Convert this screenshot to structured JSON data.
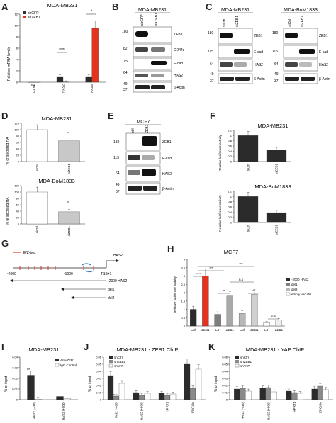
{
  "panels": {
    "A": {
      "label": "A",
      "title": "MDA-MB231",
      "ylabel": "Relative mRNA levels",
      "legend": [
        "shGFP",
        "shZEB1"
      ],
      "categories": [
        "HAS1",
        "HAS2",
        "HAS3"
      ],
      "nd": "n.d",
      "sig": [
        "****",
        "*"
      ]
    },
    "B": {
      "label": "B",
      "title": "MDA-MB231",
      "lanes": [
        "shGFP",
        "shZEB1"
      ],
      "markers": [
        "180",
        "82",
        "115",
        "64",
        "49",
        "37"
      ],
      "bands": [
        "ZEB1",
        "CD44s",
        "E-cad",
        "HAS2",
        "β-Actin"
      ]
    },
    "C": {
      "label": "C",
      "title_left": "MDA-MB231",
      "title_right": "MDA-BoM1833",
      "lanes": [
        "siCtrl",
        "siZEB1"
      ],
      "markers": [
        "180",
        "115",
        "64",
        "49",
        "37"
      ],
      "bands": [
        "ZEB1",
        "E-cad",
        "HAS2",
        "β-Actin"
      ]
    },
    "D": {
      "label": "D",
      "title_top": "MDA-MB231",
      "title_bottom": "MDA-BoM1833",
      "ylabel": "% of secreted HA",
      "categories": [
        "siCtrl",
        "siZEB1"
      ],
      "sig": [
        "**",
        "**"
      ]
    },
    "E": {
      "label": "E",
      "title": "MCF7",
      "lanes": [
        "ctrl",
        "ZEB1"
      ],
      "markers": [
        "182",
        "115",
        "64",
        "49",
        "37"
      ],
      "bands": [
        "ZEB1",
        "E-cad",
        "HAS2",
        "β-Actin"
      ]
    },
    "F": {
      "label": "F",
      "title_top": "MDA-MB231",
      "title_bottom": "MDA-BoM1833",
      "ylabel": "Relative luciferase activity",
      "categories": [
        "siCtrl",
        "siZEB1"
      ],
      "sig": [
        "**",
        "***"
      ]
    },
    "G": {
      "label": "G",
      "ezbox": "E/Z-box",
      "gene": "HAS2",
      "ticks": [
        "-2000",
        "-1000"
      ],
      "tss": "TSS+1",
      "constructs": [
        "-2000 HAS2",
        "del1",
        "del2"
      ]
    },
    "H": {
      "label": "H",
      "title": "MCF7",
      "ylabel": "Relative luciferase activity",
      "legend": [
        "-2000 HAS2",
        "del1",
        "del2",
        "empty vec ctrl"
      ],
      "categories": [
        "Ctrl",
        "ZEB1",
        "Ctrl",
        "ZEB1",
        "Ctrl",
        "ZEB1",
        "Ctrl",
        "ZEB1"
      ],
      "sig": [
        "****",
        "***",
        "***",
        "**",
        "**",
        "n.s",
        "n.s"
      ]
    },
    "I": {
      "label": "I",
      "title": "MDA-MB231",
      "ylabel": "% of input",
      "legend": [
        "Anti-ZEB1",
        "IgG Control"
      ],
      "categories": [
        "HAS2 (-480)",
        "HAS2 (+500)"
      ],
      "sig": [
        "**"
      ]
    },
    "J": {
      "label": "J",
      "title": "MDA-MB231 - ZEB1 ChIP",
      "ylabel": "% of input",
      "legend": [
        "shCtrl",
        "shZEB1",
        "shYAP"
      ],
      "categories": [
        "HAS2 (-480)",
        "HAS2 (+500)",
        "HPRT1",
        "EPCAM"
      ],
      "sig": [
        "*",
        "**"
      ]
    },
    "K": {
      "label": "K",
      "title": "MDA-MB231 - YAP ChIP",
      "ylabel": "% of input",
      "legend": [
        "shCtrl",
        "shZEB1",
        "shYAP"
      ],
      "categories": [
        "HAS2 (-480)",
        "HAS2 (+500)",
        "HPRT1",
        "EPCAM"
      ]
    }
  },
  "chart_data": [
    {
      "panel": "A",
      "type": "bar",
      "categories": [
        "HAS1",
        "HAS2",
        "HAS3"
      ],
      "series": [
        {
          "name": "shGFP",
          "values": [
            0,
            1,
            1
          ]
        },
        {
          "name": "shZEB1",
          "values": [
            0,
            0.05,
            9.5
          ]
        }
      ],
      "ylim": [
        0,
        12
      ],
      "yticks": [
        0,
        2,
        4,
        6,
        8,
        10,
        12
      ],
      "ylabel": "Relative mRNA levels",
      "title": "MDA-MB231"
    },
    {
      "panel": "D-top",
      "type": "bar",
      "categories": [
        "siCtrl",
        "siZEB1"
      ],
      "values": [
        100,
        65
      ],
      "ylim": [
        0,
        120
      ],
      "yticks": [
        0,
        20,
        40,
        60,
        80,
        100,
        120
      ],
      "title": "MDA-MB231"
    },
    {
      "panel": "D-bottom",
      "type": "bar",
      "categories": [
        "siCtrl",
        "siZEB1"
      ],
      "values": [
        100,
        38
      ],
      "ylim": [
        0,
        120
      ],
      "yticks": [
        0,
        20,
        40,
        60,
        80,
        100,
        120
      ],
      "title": "MDA-BoM1833"
    },
    {
      "panel": "F-top",
      "type": "bar",
      "categories": [
        "siCtrl",
        "siZEB1"
      ],
      "values": [
        1,
        0.45
      ],
      "ylim": [
        0,
        1.2
      ],
      "yticks": [
        0,
        0.2,
        0.4,
        0.6,
        0.8,
        1,
        1.2
      ],
      "title": "MDA-MB231"
    },
    {
      "panel": "F-bottom",
      "type": "bar",
      "categories": [
        "siCtrl",
        "siZEB1"
      ],
      "values": [
        1,
        0.38
      ],
      "ylim": [
        0,
        1.2
      ],
      "yticks": [
        0,
        0.2,
        0.4,
        0.6,
        0.8,
        1,
        1.2
      ],
      "title": "MDA-BoM1833"
    },
    {
      "panel": "H",
      "type": "bar",
      "categories": [
        "Ctrl",
        "ZEB1",
        "Ctrl",
        "ZEB1",
        "Ctrl",
        "ZEB1",
        "Ctrl",
        "ZEB1"
      ],
      "values": [
        1,
        3.0,
        0.7,
        1.8,
        0.75,
        1.9,
        0.2,
        0.35
      ],
      "groups": [
        "-2000 HAS2",
        "-2000 HAS2",
        "del1",
        "del1",
        "del2",
        "del2",
        "empty vec ctrl",
        "empty vec ctrl"
      ],
      "ylim": [
        0,
        4
      ],
      "yticks": [
        0,
        0.5,
        1,
        1.5,
        2,
        2.5,
        3,
        3.5,
        4
      ],
      "title": "MCF7"
    },
    {
      "panel": "I",
      "type": "bar",
      "categories": [
        "HAS2 (-480)",
        "HAS2 (+500)"
      ],
      "series": [
        {
          "name": "Anti-ZEB1",
          "values": [
            0.023,
            0.003
          ]
        },
        {
          "name": "IgG Control",
          "values": [
            0.0005,
            0.001
          ]
        }
      ],
      "ylim": [
        0,
        0.04
      ],
      "yticks": [
        0,
        0.01,
        0.02,
        0.03,
        0.04
      ],
      "title": "MDA-MB231"
    },
    {
      "panel": "J",
      "type": "bar",
      "categories": [
        "HAS2 (-480)",
        "HAS2 (+500)",
        "HPRT1",
        "EPCAM"
      ],
      "series": [
        {
          "name": "shCtrl",
          "values": [
            0.034,
            0.01,
            0.009,
            0.05
          ]
        },
        {
          "name": "shZEB1",
          "values": [
            0.005,
            0.006,
            0.006,
            0.016
          ]
        },
        {
          "name": "shYAP",
          "values": [
            0.023,
            0.009,
            0.008,
            0.043
          ]
        }
      ],
      "ylim": [
        0,
        0.06
      ],
      "yticks": [
        0,
        0.01,
        0.02,
        0.03,
        0.04,
        0.05,
        0.06
      ],
      "title": "MDA-MB231 - ZEB1 ChIP"
    },
    {
      "panel": "K",
      "type": "bar",
      "categories": [
        "HAS2 (-480)",
        "HAS2 (+500)",
        "HPRT1",
        "EPCAM"
      ],
      "series": [
        {
          "name": "shCtrl",
          "values": [
            0.015,
            0.016,
            0.012,
            0.015
          ]
        },
        {
          "name": "shZEB1",
          "values": [
            0.016,
            0.017,
            0.01,
            0.019
          ]
        },
        {
          "name": "shYAP",
          "values": [
            0.012,
            0.011,
            0.009,
            0.014
          ]
        }
      ],
      "ylim": [
        0,
        0.06
      ],
      "yticks": [
        0,
        0.01,
        0.02,
        0.03,
        0.04,
        0.05,
        0.06
      ],
      "title": "MDA-MB231 - YAP ChIP"
    }
  ]
}
